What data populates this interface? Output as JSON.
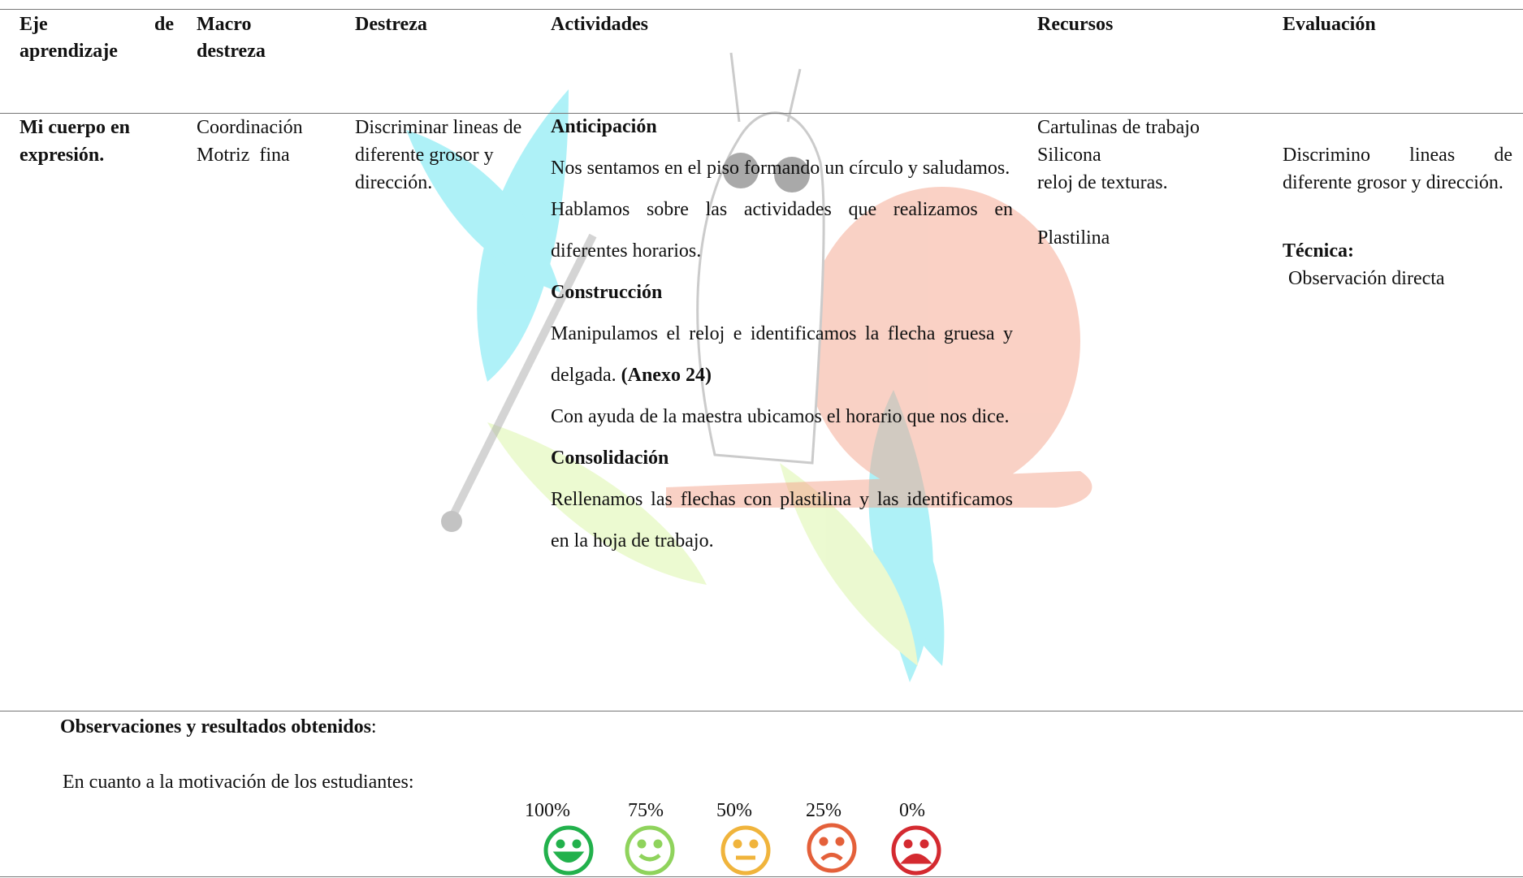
{
  "table": {
    "headers": [
      "Eje de aprendizaje",
      "Macro destreza",
      "Destreza",
      "Actividades",
      "Recursos",
      "Evaluación"
    ],
    "eje": "Mi cuerpo en expresión.",
    "macro": [
      "Coordinación",
      "Motriz  fina"
    ],
    "destreza": "Discriminar lineas de diferente grosor y dirección.",
    "actividades": [
      {
        "heading": "Anticipación",
        "paragraphs": [
          {
            "text": "Nos sentamos en el piso formando un círculo y saludamos."
          },
          {
            "text": "Hablamos sobre las actividades que realizamos en diferentes horarios."
          }
        ]
      },
      {
        "heading": "Construcción",
        "paragraphs": [
          {
            "text": "Manipulamos el reloj e identificamos la flecha gruesa y delgada.",
            "bold": "(Anexo 24)"
          },
          {
            "text": "Con ayuda de la maestra ubicamos el horario que nos dice."
          }
        ]
      },
      {
        "heading": "Consolidación",
        "paragraphs": [
          {
            "text": "Rellenamos las flechas con plastilina y las identificamos en la hoja de trabajo."
          }
        ]
      }
    ],
    "recursos": [
      "Cartulinas de trabajo",
      "Silicona",
      "reloj de texturas.",
      "Plastilina"
    ],
    "evaluacion": {
      "text": "Discrimino lineas de diferente grosor y dirección.",
      "tecnica_label": "Técnica:",
      "tecnica": "Observación directa"
    }
  },
  "observaciones": {
    "title": "Observaciones y resultados obtenidos",
    "separator": ":",
    "motivacion": "En cuanto a la motivación de los estudiantes:",
    "scale": [
      "100%",
      "75%",
      "50%",
      "25%",
      "0%"
    ]
  }
}
